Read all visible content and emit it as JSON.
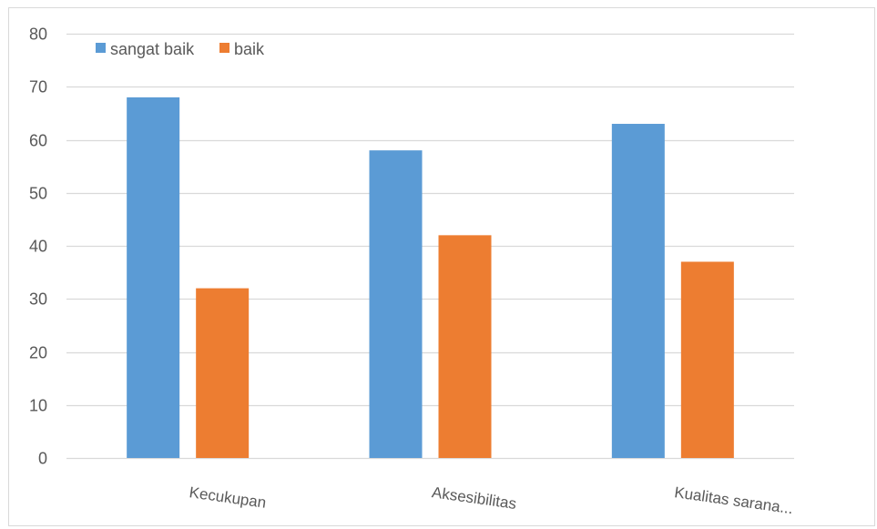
{
  "chart_data": {
    "type": "bar",
    "categories": [
      "Kecukupan",
      "Aksesibilitas",
      "Kualitas sarana..."
    ],
    "series": [
      {
        "name": "sangat baik",
        "values": [
          68,
          58,
          63
        ],
        "color": "#5B9BD5"
      },
      {
        "name": "baik",
        "values": [
          32,
          42,
          37
        ],
        "color": "#ED7D31"
      }
    ],
    "ylim": [
      0,
      80
    ],
    "yticks": [
      0,
      10,
      20,
      30,
      40,
      50,
      60,
      70,
      80
    ],
    "grid": true,
    "legend": "top-left"
  },
  "colors": {
    "gridline": "#D9D9D9",
    "text": "#595959",
    "border": "#D9D9D9",
    "background": "#FFFFFF"
  }
}
